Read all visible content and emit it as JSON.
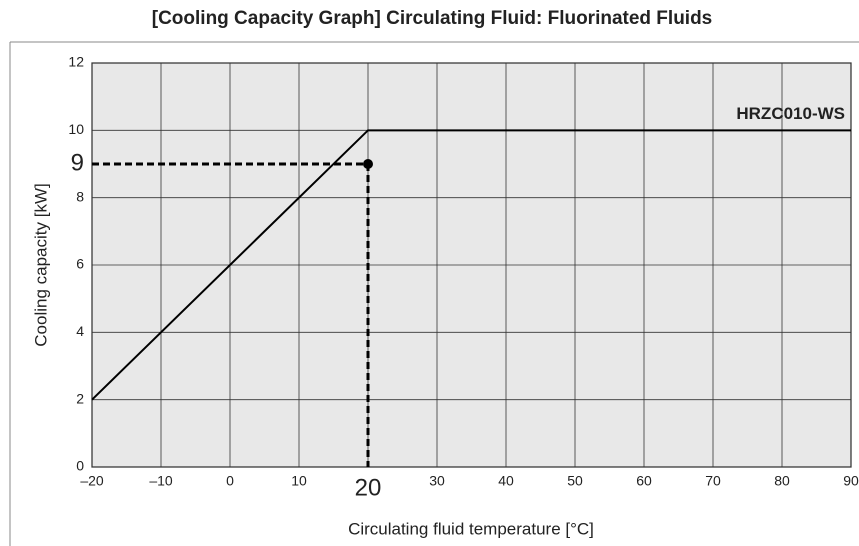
{
  "chart_data": {
    "type": "line",
    "title": "[Cooling Capacity Graph] Circulating Fluid: Fluorinated Fluids",
    "xlabel": "Circulating fluid temperature [°C]",
    "ylabel": "Cooling capacity [kW]",
    "x": [
      -20,
      20,
      90
    ],
    "series": [
      {
        "name": "HRZC010-WS",
        "color": "#000000",
        "values": [
          2,
          10,
          10
        ]
      }
    ],
    "xlim": [
      -20,
      90
    ],
    "ylim": [
      0,
      12
    ],
    "xticks": [
      {
        "value": -20,
        "label": "–20"
      },
      {
        "value": -10,
        "label": "–10"
      },
      0,
      10,
      20,
      30,
      40,
      50,
      60,
      70,
      80,
      90
    ],
    "yticks": [
      0,
      2,
      4,
      6,
      8,
      10,
      12
    ],
    "grid": true,
    "highlight": {
      "x": 20,
      "y": 9
    }
  }
}
